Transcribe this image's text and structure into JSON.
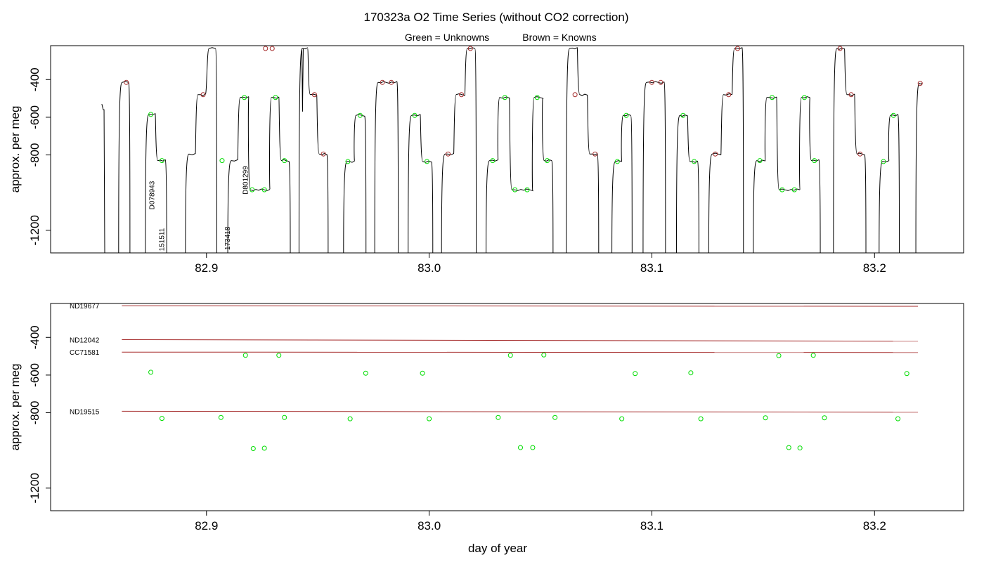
{
  "title": "170323a   O2 Time Series (without CO2 correction)",
  "legend": {
    "unknowns": "Green = Unknowns",
    "knowns": "Brown = Knowns",
    "unknown_color": "#00dd00",
    "known_color": "#a52a2a"
  },
  "chart_data": [
    {
      "type": "line",
      "panel": "top",
      "xlabel": "",
      "ylabel": "approx. per meg",
      "xlim": [
        82.83,
        83.24
      ],
      "ylim": [
        -1320,
        -220
      ],
      "x_ticks": [
        82.9,
        83.0,
        83.1,
        83.2
      ],
      "x_tick_labels": [
        "82.9",
        "83.0",
        "83.1",
        "83.2"
      ],
      "y_ticks": [
        -400,
        -600,
        -800,
        -1200
      ],
      "y_tick_labels": [
        "-400",
        "-600",
        "-800",
        "-1200"
      ],
      "series": [
        {
          "segments": [
            {
              "x0": 82.853,
              "x1": 82.854,
              "y": -560,
              "dip": 82.856,
              "lead": true
            },
            {
              "x0": 82.8615,
              "x1": 82.865,
              "y": -415
            },
            {
              "x0": 82.8735,
              "x1": 82.877,
              "y": -585
            },
            {
              "x0": 82.8775,
              "x1": 82.8815,
              "y": -830
            },
            {
              "x0": 82.8915,
              "x1": 82.895,
              "y": -795
            },
            {
              "x0": 82.8955,
              "x1": 82.8995,
              "y": -480
            },
            {
              "x0": 82.9005,
              "x1": 82.904,
              "y": -235
            },
            {
              "x0": 82.9105,
              "x1": 82.914,
              "y": -830
            },
            {
              "x0": 82.9145,
              "x1": 82.919,
              "y": -495
            },
            {
              "x0": 82.919,
              "x1": 82.9285,
              "y": -985
            },
            {
              "x0": 82.9285,
              "x1": 82.9325,
              "y": -495
            },
            {
              "x0": 82.933,
              "x1": 82.937,
              "y": -830
            },
            {
              "x0": 82.9425,
              "x1": 82.9455,
              "y": -235,
              "spike": true
            },
            {
              "x0": 82.946,
              "x1": 82.9495,
              "y": -480
            },
            {
              "x0": 82.95,
              "x1": 82.954,
              "y": -795
            },
            {
              "x0": 82.9625,
              "x1": 82.9665,
              "y": -835
            },
            {
              "x0": 82.9665,
              "x1": 82.971,
              "y": -590
            },
            {
              "x0": 82.9765,
              "x1": 82.9855,
              "y": -415
            },
            {
              "x0": 82.9915,
              "x1": 82.996,
              "y": -590
            },
            {
              "x0": 82.9965,
              "x1": 83.001,
              "y": -835
            },
            {
              "x0": 83.0065,
              "x1": 83.011,
              "y": -795
            },
            {
              "x0": 83.0115,
              "x1": 83.016,
              "y": -480
            },
            {
              "x0": 83.0165,
              "x1": 83.0205,
              "y": -235
            },
            {
              "x0": 83.0265,
              "x1": 83.031,
              "y": -830
            },
            {
              "x0": 83.031,
              "x1": 83.036,
              "y": -495
            },
            {
              "x0": 83.0365,
              "x1": 83.0465,
              "y": -985
            },
            {
              "x0": 83.0465,
              "x1": 83.051,
              "y": -495
            },
            {
              "x0": 83.051,
              "x1": 83.055,
              "y": -830
            },
            {
              "x0": 83.0625,
              "x1": 83.0665,
              "y": -235
            },
            {
              "x0": 83.067,
              "x1": 83.071,
              "y": -480
            },
            {
              "x0": 83.0715,
              "x1": 83.0755,
              "y": -795
            },
            {
              "x0": 83.083,
              "x1": 83.0865,
              "y": -835
            },
            {
              "x0": 83.0865,
              "x1": 83.0905,
              "y": -590
            },
            {
              "x0": 83.097,
              "x1": 83.1055,
              "y": -415
            },
            {
              "x0": 83.112,
              "x1": 83.116,
              "y": -590
            },
            {
              "x0": 83.1165,
              "x1": 83.1205,
              "y": -835
            },
            {
              "x0": 83.1265,
              "x1": 83.131,
              "y": -795
            },
            {
              "x0": 83.1315,
              "x1": 83.136,
              "y": -480
            },
            {
              "x0": 83.1365,
              "x1": 83.1405,
              "y": -235
            },
            {
              "x0": 83.1465,
              "x1": 83.151,
              "y": -830
            },
            {
              "x0": 83.151,
              "x1": 83.156,
              "y": -495
            },
            {
              "x0": 83.1565,
              "x1": 83.1665,
              "y": -985
            },
            {
              "x0": 83.1665,
              "x1": 83.171,
              "y": -495
            },
            {
              "x0": 83.171,
              "x1": 83.175,
              "y": -830
            },
            {
              "x0": 83.1825,
              "x1": 83.1865,
              "y": -235
            },
            {
              "x0": 83.187,
              "x1": 83.191,
              "y": -480
            },
            {
              "x0": 83.1915,
              "x1": 83.1955,
              "y": -795
            },
            {
              "x0": 83.203,
              "x1": 83.2065,
              "y": -835
            },
            {
              "x0": 83.2065,
              "x1": 83.2105,
              "y": -590
            },
            {
              "x0": 83.2195,
              "x1": 83.2215,
              "y": -420,
              "trail": true
            }
          ]
        }
      ],
      "known_points": [
        {
          "x": 82.864,
          "y": -415
        },
        {
          "x": 82.8985,
          "y": -480
        },
        {
          "x": 82.9265,
          "y": -235
        },
        {
          "x": 82.9295,
          "y": -235
        },
        {
          "x": 82.9485,
          "y": -480
        },
        {
          "x": 82.9525,
          "y": -795
        },
        {
          "x": 82.979,
          "y": -415
        },
        {
          "x": 82.983,
          "y": -415
        },
        {
          "x": 83.0085,
          "y": -795
        },
        {
          "x": 83.0145,
          "y": -480
        },
        {
          "x": 83.0185,
          "y": -235
        },
        {
          "x": 83.0655,
          "y": -480
        },
        {
          "x": 83.0745,
          "y": -795
        },
        {
          "x": 83.1,
          "y": -415
        },
        {
          "x": 83.104,
          "y": -415
        },
        {
          "x": 83.1285,
          "y": -795
        },
        {
          "x": 83.1345,
          "y": -480
        },
        {
          "x": 83.1385,
          "y": -235
        },
        {
          "x": 83.1845,
          "y": -235
        },
        {
          "x": 83.1895,
          "y": -480
        },
        {
          "x": 83.1935,
          "y": -795
        },
        {
          "x": 83.2205,
          "y": -420
        }
      ],
      "unknown_points": [
        {
          "x": 82.875,
          "y": -585
        },
        {
          "x": 82.88,
          "y": -830
        },
        {
          "x": 82.907,
          "y": -830
        },
        {
          "x": 82.917,
          "y": -495
        },
        {
          "x": 82.9205,
          "y": -985
        },
        {
          "x": 82.926,
          "y": -985
        },
        {
          "x": 82.931,
          "y": -495
        },
        {
          "x": 82.935,
          "y": -830
        },
        {
          "x": 82.9635,
          "y": -835
        },
        {
          "x": 82.969,
          "y": -590
        },
        {
          "x": 82.9935,
          "y": -590
        },
        {
          "x": 82.999,
          "y": -835
        },
        {
          "x": 83.0285,
          "y": -830
        },
        {
          "x": 83.034,
          "y": -495
        },
        {
          "x": 83.0385,
          "y": -985
        },
        {
          "x": 83.044,
          "y": -985
        },
        {
          "x": 83.0485,
          "y": -495
        },
        {
          "x": 83.053,
          "y": -830
        },
        {
          "x": 83.0845,
          "y": -835
        },
        {
          "x": 83.0885,
          "y": -590
        },
        {
          "x": 83.114,
          "y": -590
        },
        {
          "x": 83.119,
          "y": -835
        },
        {
          "x": 83.1485,
          "y": -830
        },
        {
          "x": 83.154,
          "y": -495
        },
        {
          "x": 83.1585,
          "y": -985
        },
        {
          "x": 83.164,
          "y": -985
        },
        {
          "x": 83.1685,
          "y": -495
        },
        {
          "x": 83.173,
          "y": -830
        },
        {
          "x": 83.204,
          "y": -835
        },
        {
          "x": 83.2085,
          "y": -590
        }
      ],
      "annotations": [
        {
          "text": "D078943",
          "x": 82.8765,
          "y": -1090
        },
        {
          "text": "151511",
          "x": 82.881,
          "y": -1310
        },
        {
          "text": "D801299",
          "x": 82.9185,
          "y": -1010
        },
        {
          "text": "173418",
          "x": 82.9105,
          "y": -1305
        }
      ]
    },
    {
      "type": "scatter",
      "panel": "bottom",
      "xlabel": "day of year",
      "ylabel": "approx. per meg",
      "xlim": [
        82.83,
        83.24
      ],
      "ylim": [
        -1320,
        -220
      ],
      "x_ticks": [
        82.9,
        83.0,
        83.1,
        83.2
      ],
      "x_tick_labels": [
        "82.9",
        "83.0",
        "83.1",
        "83.2"
      ],
      "y_ticks": [
        -400,
        -600,
        -800,
        -1200
      ],
      "y_tick_labels": [
        "-400",
        "-600",
        "-800",
        "-1200"
      ],
      "reference_lines": [
        {
          "name": "ND19677",
          "y0": -232,
          "y1": -235
        },
        {
          "name": "ND12042",
          "y0": -412,
          "y1": -420
        },
        {
          "name": "CC71581",
          "y0": -478,
          "y1": -480
        },
        {
          "name": "ND19515",
          "y0": -792,
          "y1": -797
        }
      ],
      "ref_x_range": [
        82.862,
        83.2195
      ],
      "unknown_points": [
        {
          "x": 82.875,
          "y": -585
        },
        {
          "x": 82.88,
          "y": -830
        },
        {
          "x": 82.9065,
          "y": -825
        },
        {
          "x": 82.9175,
          "y": -495
        },
        {
          "x": 82.921,
          "y": -990
        },
        {
          "x": 82.926,
          "y": -988
        },
        {
          "x": 82.9325,
          "y": -495
        },
        {
          "x": 82.935,
          "y": -825
        },
        {
          "x": 82.9645,
          "y": -832
        },
        {
          "x": 82.9715,
          "y": -590
        },
        {
          "x": 82.997,
          "y": -590
        },
        {
          "x": 83.0,
          "y": -832
        },
        {
          "x": 83.031,
          "y": -825
        },
        {
          "x": 83.0365,
          "y": -495
        },
        {
          "x": 83.041,
          "y": -985
        },
        {
          "x": 83.0465,
          "y": -985
        },
        {
          "x": 83.0515,
          "y": -493
        },
        {
          "x": 83.0565,
          "y": -825
        },
        {
          "x": 83.0865,
          "y": -832
        },
        {
          "x": 83.0925,
          "y": -592
        },
        {
          "x": 83.1175,
          "y": -588
        },
        {
          "x": 83.122,
          "y": -832
        },
        {
          "x": 83.151,
          "y": -827
        },
        {
          "x": 83.157,
          "y": -497
        },
        {
          "x": 83.1615,
          "y": -985
        },
        {
          "x": 83.1665,
          "y": -987
        },
        {
          "x": 83.1725,
          "y": -495
        },
        {
          "x": 83.1775,
          "y": -827
        },
        {
          "x": 83.2105,
          "y": -832
        },
        {
          "x": 83.2145,
          "y": -592
        }
      ]
    }
  ]
}
